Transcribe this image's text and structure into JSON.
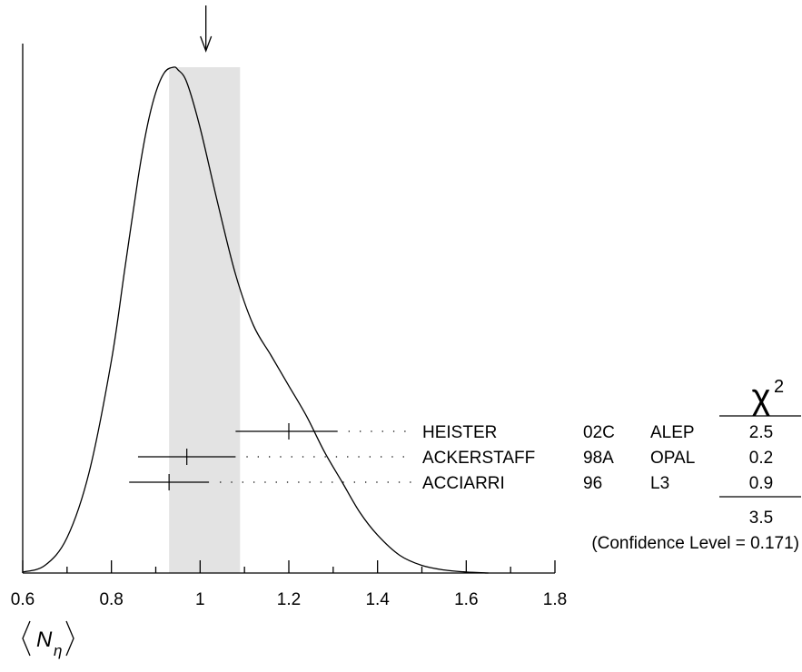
{
  "chart_data": {
    "type": "ideogram",
    "x_axis": {
      "label": "⟨N_η⟩",
      "label_main": "N",
      "label_sub": "η",
      "range": [
        0.6,
        1.8
      ],
      "ticks": [
        "0.6",
        "0.8",
        "1",
        "1.2",
        "1.4",
        "1.6",
        "1.8"
      ],
      "tick_values": [
        0.6,
        0.8,
        1.0,
        1.2,
        1.4,
        1.6,
        1.8
      ],
      "minor_step": 0.1
    },
    "average": {
      "value": 1.013,
      "band_low": 0.93,
      "band_high": 1.09
    },
    "chi2_header": "χ",
    "chi2_exponent": "2",
    "measurements": [
      {
        "author": "HEISTER",
        "ref": "02C",
        "experiment": "ALEP",
        "value": 1.2,
        "err_low": 1.08,
        "err_high": 1.31,
        "chi2": "2.5"
      },
      {
        "author": "ACKERSTAFF",
        "ref": "98A",
        "experiment": "OPAL",
        "value": 0.97,
        "err_low": 0.86,
        "err_high": 1.08,
        "chi2": "0.2"
      },
      {
        "author": "ACCIARRI",
        "ref": "96",
        "experiment": "L3",
        "value": 0.93,
        "err_low": 0.84,
        "err_high": 1.02,
        "chi2": "0.9"
      }
    ],
    "chi2_total": "3.5",
    "confidence_level": "(Confidence Level = 0.171)",
    "curve": {
      "x": [
        0.6,
        0.65,
        0.7,
        0.75,
        0.8,
        0.83,
        0.86,
        0.88,
        0.9,
        0.92,
        0.94,
        0.95,
        0.97,
        1.0,
        1.04,
        1.08,
        1.12,
        1.16,
        1.2,
        1.24,
        1.28,
        1.32,
        1.36,
        1.4,
        1.45,
        1.5,
        1.55,
        1.6,
        1.65
      ],
      "y": [
        0.002,
        0.015,
        0.07,
        0.2,
        0.42,
        0.6,
        0.78,
        0.88,
        0.95,
        0.99,
        1.0,
        0.995,
        0.97,
        0.88,
        0.73,
        0.59,
        0.49,
        0.43,
        0.37,
        0.31,
        0.24,
        0.18,
        0.12,
        0.075,
        0.035,
        0.015,
        0.006,
        0.002,
        0.0
      ]
    }
  }
}
